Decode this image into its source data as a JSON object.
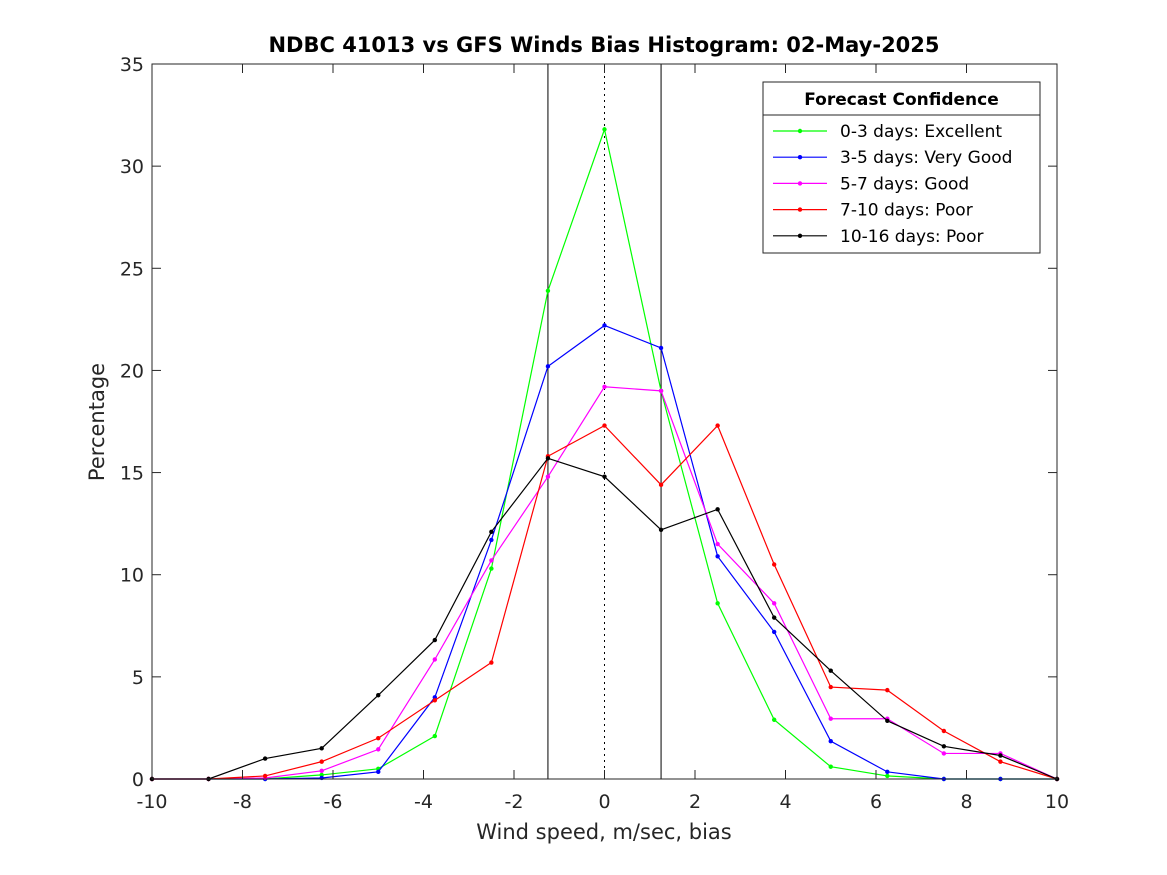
{
  "chart_data": {
    "type": "line",
    "title": "NDBC 41013 vs GFS Winds Bias Histogram: 02-May-2025",
    "xlabel": "Wind speed, m/sec, bias",
    "ylabel": "Percentage",
    "xlim": [
      -10,
      10
    ],
    "ylim": [
      0,
      35
    ],
    "xticks": [
      -10,
      -8,
      -6,
      -4,
      -2,
      0,
      2,
      4,
      6,
      8,
      10
    ],
    "yticks": [
      0,
      5,
      10,
      15,
      20,
      25,
      30,
      35
    ],
    "grid": false,
    "legend_title": "Forecast Confidence",
    "legend_position": "top-right",
    "reference_lines": [
      {
        "x": -1.25,
        "style": "solid",
        "color": "#000000"
      },
      {
        "x": 0,
        "style": "dotted",
        "color": "#000000"
      },
      {
        "x": 1.25,
        "style": "solid",
        "color": "#000000"
      }
    ],
    "x": [
      -10,
      -8.75,
      -7.5,
      -6.25,
      -5,
      -3.75,
      -2.5,
      -1.25,
      0,
      1.25,
      2.5,
      3.75,
      5,
      6.25,
      7.5,
      8.75,
      10
    ],
    "series": [
      {
        "name": "0-3 days: Excellent",
        "color": "#00ff00",
        "values": [
          0,
          0,
          0,
          0.2,
          0.5,
          2.1,
          10.3,
          23.9,
          31.8,
          19.0,
          8.6,
          2.9,
          0.6,
          0.15,
          0,
          0,
          0
        ]
      },
      {
        "name": "3-5 days: Very Good",
        "color": "#0000ff",
        "values": [
          0,
          0,
          0,
          0.05,
          0.35,
          4.0,
          11.7,
          20.2,
          22.2,
          21.1,
          10.9,
          7.2,
          1.85,
          0.35,
          0,
          0,
          0
        ]
      },
      {
        "name": "5-7 days: Good",
        "color": "#ff00ff",
        "values": [
          0,
          0,
          0.05,
          0.4,
          1.45,
          5.85,
          10.7,
          14.8,
          19.2,
          19.0,
          11.5,
          8.6,
          2.95,
          2.95,
          1.25,
          1.25,
          0
        ]
      },
      {
        "name": "7-10 days: Poor",
        "color": "#ff0000",
        "values": [
          0,
          0,
          0.15,
          0.85,
          2.0,
          3.85,
          5.7,
          15.8,
          17.3,
          14.4,
          17.3,
          10.5,
          4.5,
          4.35,
          2.35,
          0.85,
          0
        ]
      },
      {
        "name": "10-16 days: Poor",
        "color": "#000000",
        "values": [
          0,
          0,
          1.0,
          1.5,
          4.1,
          6.8,
          12.1,
          15.7,
          14.8,
          12.2,
          13.2,
          7.9,
          5.3,
          2.85,
          1.6,
          1.15,
          0
        ]
      }
    ]
  }
}
